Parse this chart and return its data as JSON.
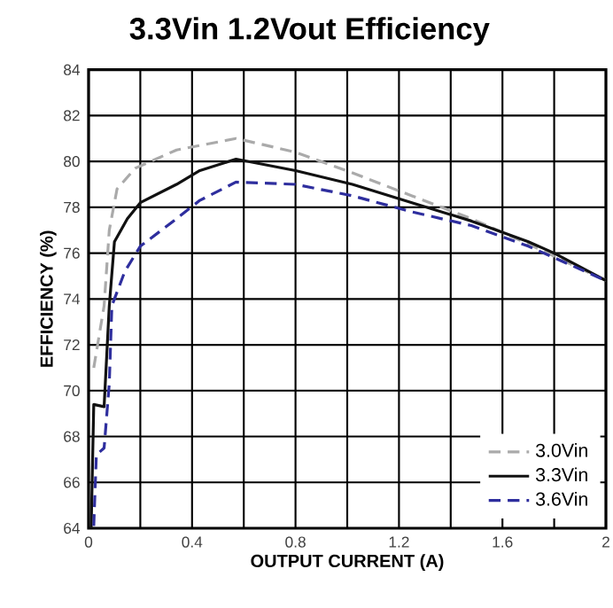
{
  "chart_data": {
    "type": "line",
    "title": "3.3Vin 1.2Vout Efficiency",
    "xlabel": "OUTPUT CURRENT (A)",
    "ylabel": "EFFICIENCY (%)",
    "xlim": [
      0,
      2
    ],
    "ylim": [
      64,
      84
    ],
    "xticks": [
      0,
      {
        "value": 0.2,
        "label": null
      },
      0.4,
      {
        "value": 0.6,
        "label": null
      },
      0.8,
      {
        "value": 1.0,
        "label": null
      },
      1.2,
      {
        "value": 1.4,
        "label": null
      },
      1.6,
      {
        "value": 1.8,
        "label": null
      },
      2
    ],
    "yticks": [
      64,
      66,
      68,
      70,
      72,
      74,
      76,
      78,
      80,
      82,
      84
    ],
    "grid": true,
    "legend": "bottom right",
    "series": [
      {
        "name": "3.0Vin",
        "color": "#aaaaaa",
        "line_style": "dashed",
        "x": [
          0.02,
          0.06,
          0.08,
          0.11,
          0.18,
          0.34,
          0.57,
          0.61,
          0.8,
          1.02,
          1.25,
          1.48,
          1.7,
          2.0
        ],
        "values": [
          71,
          73.7,
          77,
          78.8,
          79.7,
          80.5,
          81,
          80.9,
          80.4,
          79.5,
          78.5,
          77.5,
          76.4,
          74.8
        ]
      },
      {
        "name": "3.3Vin",
        "color": "#111111",
        "line_style": "solid",
        "x": [
          0.01,
          0.02,
          0.06,
          0.08,
          0.1,
          0.15,
          0.2,
          0.34,
          0.43,
          0.57,
          0.8,
          1.02,
          1.25,
          1.48,
          1.7,
          1.8,
          2.0
        ],
        "values": [
          64,
          69.4,
          69.3,
          73.7,
          76.5,
          77.5,
          78.2,
          79,
          79.6,
          80.1,
          79.6,
          79,
          78.2,
          77.4,
          76.5,
          76,
          74.8
        ]
      },
      {
        "name": "3.6Vin",
        "color": "#2e2e9e",
        "line_style": "dashed",
        "x": [
          0.02,
          0.03,
          0.06,
          0.08,
          0.09,
          0.14,
          0.2,
          0.34,
          0.43,
          0.57,
          0.8,
          1.02,
          1.25,
          1.48,
          1.7,
          2.0
        ],
        "values": [
          64.1,
          67.2,
          67.5,
          70.3,
          73.7,
          75.2,
          76.3,
          77.5,
          78.3,
          79.1,
          79,
          78.5,
          77.8,
          77.2,
          76.3,
          74.8
        ]
      }
    ]
  }
}
